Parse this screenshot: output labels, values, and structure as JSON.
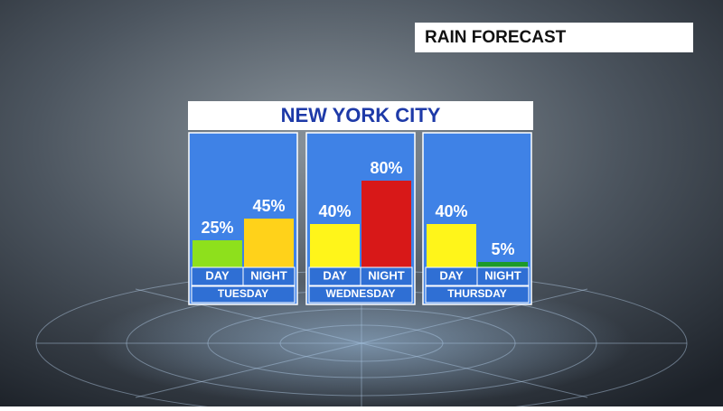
{
  "header": "RAIN FORECAST",
  "chart_data": {
    "type": "bar",
    "title": "NEW YORK CITY",
    "ylim": [
      0,
      100
    ],
    "groups": [
      {
        "name": "TUESDAY",
        "categories": [
          "DAY",
          "NIGHT"
        ],
        "values": [
          25,
          45
        ],
        "value_labels": [
          "25%",
          "45%"
        ],
        "colors": [
          "#8ee01c",
          "#ffd21a"
        ]
      },
      {
        "name": "WEDNESDAY",
        "categories": [
          "DAY",
          "NIGHT"
        ],
        "values": [
          40,
          80
        ],
        "value_labels": [
          "40%",
          "80%"
        ],
        "colors": [
          "#fff51a",
          "#d81818"
        ]
      },
      {
        "name": "THURSDAY",
        "categories": [
          "DAY",
          "NIGHT"
        ],
        "values": [
          40,
          5
        ],
        "value_labels": [
          "40%",
          "5%"
        ],
        "colors": [
          "#fff51a",
          "#1c9a2a"
        ]
      }
    ]
  }
}
